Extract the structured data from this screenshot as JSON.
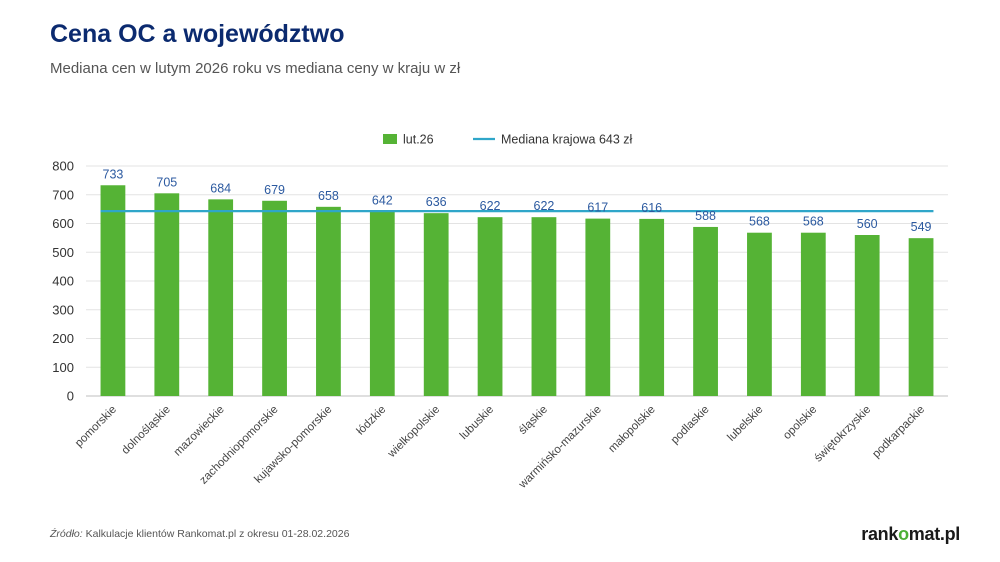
{
  "header": {
    "title": "Cena OC a województwo",
    "subtitle": "Mediana cen w lutym 2026 roku vs mediana ceny w kraju w zł"
  },
  "footer": {
    "source_label": "Źródło:",
    "source_text": " Kalkulacje klientów Rankomat.pl z okresu 01-28.02.2026",
    "logo_part1": "rank",
    "logo_part2": "o",
    "logo_part3": "mat.pl"
  },
  "chart_data": {
    "type": "bar",
    "title": "Cena OC a województwo",
    "subtitle": "Mediana cen w lutym 2026 roku vs mediana ceny w kraju w zł",
    "categories": [
      "pomorskie",
      "dolnośląskie",
      "mazowieckie",
      "zachodniopomorskie",
      "kujawsko-pomorskie",
      "łódzkie",
      "wielkopolskie",
      "lubuskie",
      "śląskie",
      "warmińsko-mazurskie",
      "małopolskie",
      "podlaskie",
      "lubelskie",
      "opolskie",
      "świętokrzyskie",
      "podkarpackie"
    ],
    "series": [
      {
        "name": "lut.26",
        "values": [
          733,
          705,
          684,
          679,
          658,
          642,
          636,
          622,
          622,
          617,
          616,
          588,
          568,
          568,
          560,
          549
        ],
        "color": "#55b335"
      }
    ],
    "reference_line": {
      "name": "Mediana krajowa 643 zł",
      "value": 643,
      "color": "#2fa6c9"
    },
    "ylim": [
      0,
      800
    ],
    "yticks": [
      0,
      100,
      200,
      300,
      400,
      500,
      600,
      700,
      800
    ],
    "grid": true,
    "legend_position": "top-center",
    "data_labels": true
  }
}
